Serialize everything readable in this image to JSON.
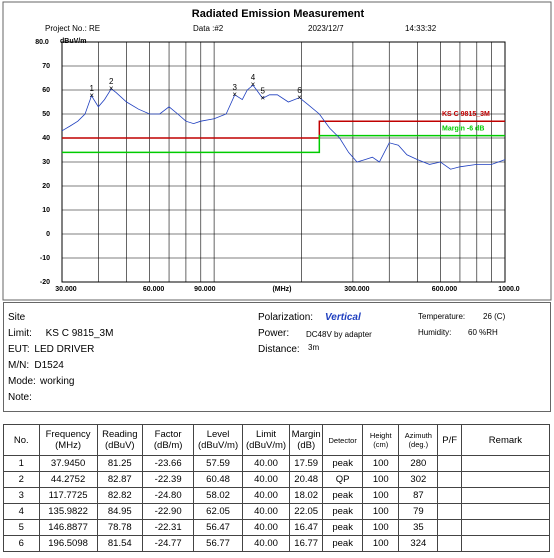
{
  "header": {
    "title": "Radiated Emission Measurement",
    "project": "Project No.: RE",
    "data": "Data :#2",
    "date": "2023/12/7",
    "time": "14:33:32"
  },
  "chart_data": {
    "type": "line",
    "ylabel": "dBuV/m",
    "xlabel": "(MHz)",
    "log_x": true,
    "grid": true,
    "xlim": [
      30,
      1000
    ],
    "ylim": [
      -20,
      80
    ],
    "xticks": [
      {
        "value": 30,
        "label": "30.000"
      },
      {
        "value": 60,
        "label": "60.000"
      },
      {
        "value": 90,
        "label": "90.000"
      },
      {
        "value": 300,
        "label": "300.000"
      },
      {
        "value": 600,
        "label": "600.000"
      },
      {
        "value": 1000,
        "label": "1000.0"
      }
    ],
    "xgrid": [
      30,
      40,
      50,
      60,
      70,
      80,
      90,
      100,
      200,
      300,
      400,
      500,
      600,
      700,
      800,
      900,
      1000
    ],
    "yticks": [
      {
        "value": 80,
        "label": "80.0"
      },
      70,
      60,
      50,
      40,
      30,
      20,
      10,
      0,
      -10,
      -20
    ],
    "series": [
      {
        "name": "KS C 9815_3M",
        "color": "#c00000",
        "x": [
          30,
          230,
          230,
          1000
        ],
        "values": [
          40,
          40,
          47,
          47
        ]
      },
      {
        "name": "Margin -6 dB",
        "color": "#00cc00",
        "x": [
          30,
          230,
          230,
          1000
        ],
        "values": [
          34,
          34,
          41,
          41
        ]
      },
      {
        "color": "#1f3fbf",
        "x": [
          30,
          32,
          34,
          36,
          37.9,
          40,
          42,
          44.3,
          46,
          50,
          55,
          60,
          65,
          70,
          75,
          80,
          85,
          90,
          100,
          110,
          117.8,
          125,
          130,
          136,
          140,
          146.9,
          155,
          165,
          180,
          196.5,
          210,
          230,
          250,
          270,
          290,
          310,
          330,
          350,
          370,
          400,
          430,
          460,
          500,
          550,
          600,
          650,
          700,
          800,
          900,
          1000
        ],
        "values": [
          43,
          45,
          47,
          50,
          57.6,
          53,
          56,
          60.5,
          59,
          55,
          52,
          50,
          50,
          53,
          50,
          47,
          46,
          47,
          48,
          50,
          58,
          56,
          60,
          62,
          60,
          56.5,
          58,
          58,
          55,
          56.8,
          54,
          50,
          44,
          40,
          34,
          30,
          31,
          32,
          30,
          38,
          37,
          33,
          31,
          29,
          30,
          27,
          28,
          29,
          29,
          31
        ]
      }
    ],
    "markers": {
      "labels": [
        "1",
        "2",
        "3",
        "4",
        "5",
        "6"
      ],
      "x": [
        37.945,
        44.2752,
        117.7725,
        135.9822,
        146.8877,
        196.5098
      ],
      "values": [
        57.59,
        60.48,
        58.02,
        62.05,
        56.47,
        56.77
      ]
    }
  },
  "info": {
    "left": [
      [
        "Site"
      ],
      [
        "Limit:",
        "KS C 9815_3M"
      ],
      [
        "EUT:",
        "LED DRIVER"
      ],
      [
        "M/N:",
        "D1524"
      ],
      [
        "Mode:",
        "working"
      ],
      [
        "Note:"
      ]
    ],
    "polarization": [
      "Polarization:",
      "Vertical"
    ],
    "power": [
      "Power:",
      "DC48V by adapter"
    ],
    "distance": [
      "Distance:",
      "3m"
    ],
    "temperature": [
      "Temperature:",
      "26 (C)"
    ],
    "humidity": [
      "Humidity:",
      "60 %RH"
    ]
  },
  "table": {
    "headers": [
      "No.",
      "Frequency\n(MHz)",
      "Reading\n(dBuV)",
      "Factor\n(dB/m)",
      "Level\n(dBuV/m)",
      "Limit\n(dBuV/m)",
      "Margin\n(dB)",
      "Detector",
      "Height\n(cm)",
      "Azimuth\n(deg.)",
      "P/F",
      "Remark"
    ],
    "rows": [
      [
        "1",
        "37.9450",
        "81.25",
        "-23.66",
        "57.59",
        "40.00",
        "17.59",
        "peak",
        "100",
        "280"
      ],
      [
        "2",
        "44.2752",
        "82.87",
        "-22.39",
        "60.48",
        "40.00",
        "20.48",
        "QP",
        "100",
        "302"
      ],
      [
        "3",
        "117.7725",
        "82.82",
        "-24.80",
        "58.02",
        "40.00",
        "18.02",
        "peak",
        "100",
        "87"
      ],
      [
        "4",
        "135.9822",
        "84.95",
        "-22.90",
        "62.05",
        "40.00",
        "22.05",
        "peak",
        "100",
        "79"
      ],
      [
        "5",
        "146.8877",
        "78.78",
        "-22.31",
        "56.47",
        "40.00",
        "16.47",
        "peak",
        "100",
        "35"
      ],
      [
        "6",
        "196.5098",
        "81.54",
        "-24.77",
        "56.77",
        "40.00",
        "16.77",
        "peak",
        "100",
        "324"
      ]
    ]
  }
}
